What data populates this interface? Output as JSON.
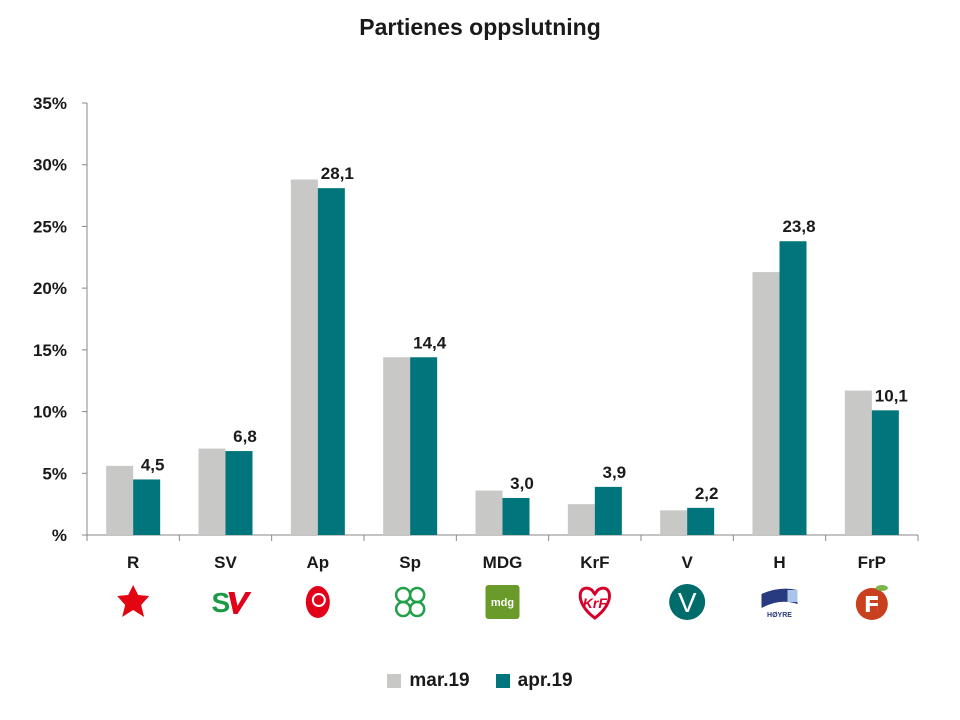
{
  "chart_data": {
    "type": "bar",
    "title": "Partienes oppslutning",
    "categories": [
      "R",
      "SV",
      "Ap",
      "Sp",
      "MDG",
      "KrF",
      "V",
      "H",
      "FrP"
    ],
    "series": [
      {
        "name": "mar.19",
        "color": "#c8c8c6",
        "values": [
          5.6,
          7.0,
          28.8,
          14.4,
          3.6,
          2.5,
          2.0,
          21.3,
          11.7
        ]
      },
      {
        "name": "apr.19",
        "color": "#00757b",
        "values": [
          4.5,
          6.8,
          28.1,
          14.4,
          3.0,
          3.9,
          2.2,
          23.8,
          10.1
        ]
      }
    ],
    "data_labels": [
      "4,5",
      "6,8",
      "28,1",
      "14,4",
      "3,0",
      "3,9",
      "2,2",
      "23,8",
      "10,1"
    ],
    "yticks": [
      0,
      5,
      10,
      15,
      20,
      25,
      30,
      35
    ],
    "ytick_labels": [
      "%",
      "5%",
      "10%",
      "15%",
      "20%",
      "25%",
      "30%",
      "35%"
    ],
    "ylim": [
      0,
      35
    ],
    "xlabel": "",
    "ylabel": "",
    "legend": "bottom",
    "logos": [
      "R logo",
      "SV logo",
      "Ap logo",
      "Sp logo",
      "mdg",
      "KrF logo",
      "V",
      "HØYRE",
      "FrP logo"
    ]
  }
}
